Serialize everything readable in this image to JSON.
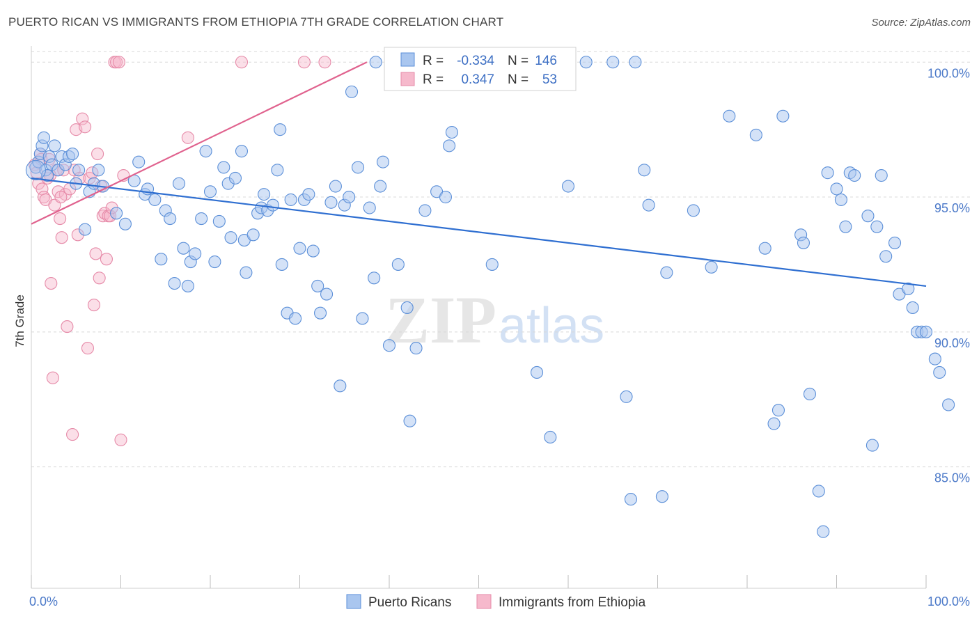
{
  "title": "PUERTO RICAN VS IMMIGRANTS FROM ETHIOPIA 7TH GRADE CORRELATION CHART",
  "source": "Source: ZipAtlas.com",
  "watermark": {
    "part1": "ZIP",
    "part2": "atlas"
  },
  "colors": {
    "blue_fill": "#a9c6ef",
    "blue_stroke": "#5b8fd8",
    "blue_line": "#2f6fd1",
    "pink_fill": "#f6b9cc",
    "pink_stroke": "#e68aa8",
    "pink_line": "#e0628e",
    "grid": "#d8d8d8",
    "tick_text": "#4a78c8"
  },
  "legend_stats": {
    "rows": [
      {
        "r_label": "R =",
        "r_value": "-0.334",
        "n_label": "N =",
        "n_value": "146"
      },
      {
        "r_label": "R =",
        "r_value": "0.347",
        "n_label": "N =",
        "n_value": "53"
      }
    ]
  },
  "chart_data": {
    "type": "scatter",
    "title": "PUERTO RICAN VS IMMIGRANTS FROM ETHIOPIA 7TH GRADE CORRELATION CHART",
    "xlabel": "",
    "ylabel": "7th Grade",
    "xlim": [
      0,
      100
    ],
    "ylim": [
      80.5,
      100.6
    ],
    "x_ticks": [
      0,
      10,
      20,
      30,
      40,
      50,
      60,
      70,
      80,
      90,
      100
    ],
    "x_tick_labels": {
      "0": "0.0%",
      "100": "100.0%"
    },
    "y_ticks": [
      85,
      90,
      95,
      100
    ],
    "y_tick_labels": [
      "85.0%",
      "90.0%",
      "95.0%",
      "100.0%"
    ],
    "grid": true,
    "legend_position": "bottom",
    "series": [
      {
        "name": "Puerto Ricans",
        "color": "#a9c6ef",
        "trend": {
          "x": [
            0,
            100
          ],
          "y": [
            95.7,
            91.7
          ]
        },
        "points": [
          [
            0.5,
            96.1
          ],
          [
            0.8,
            96.3
          ],
          [
            1.0,
            96.6
          ],
          [
            1.2,
            96.9
          ],
          [
            1.4,
            97.2
          ],
          [
            1.6,
            96.0
          ],
          [
            1.8,
            95.8
          ],
          [
            2.0,
            96.5
          ],
          [
            2.3,
            96.2
          ],
          [
            2.6,
            96.9
          ],
          [
            3.0,
            96.0
          ],
          [
            3.4,
            96.5
          ],
          [
            3.8,
            96.2
          ],
          [
            4.2,
            96.5
          ],
          [
            4.6,
            96.6
          ],
          [
            5.0,
            95.5
          ],
          [
            5.3,
            96.0
          ],
          [
            6.0,
            93.8
          ],
          [
            6.5,
            95.2
          ],
          [
            7.0,
            95.5
          ],
          [
            7.5,
            96.0
          ],
          [
            8.0,
            95.4
          ],
          [
            9.5,
            94.4
          ],
          [
            10.5,
            94.0
          ],
          [
            11.5,
            95.6
          ],
          [
            12.0,
            96.3
          ],
          [
            12.7,
            95.1
          ],
          [
            13.0,
            95.3
          ],
          [
            13.8,
            94.9
          ],
          [
            14.5,
            92.7
          ],
          [
            15.0,
            94.5
          ],
          [
            15.5,
            94.2
          ],
          [
            16.0,
            91.8
          ],
          [
            16.5,
            95.5
          ],
          [
            17.0,
            93.1
          ],
          [
            17.5,
            91.7
          ],
          [
            17.8,
            92.6
          ],
          [
            18.3,
            92.9
          ],
          [
            19.0,
            94.2
          ],
          [
            19.5,
            96.7
          ],
          [
            20.0,
            95.2
          ],
          [
            20.5,
            92.6
          ],
          [
            21.0,
            94.1
          ],
          [
            21.5,
            96.1
          ],
          [
            22.0,
            95.5
          ],
          [
            22.3,
            93.5
          ],
          [
            22.8,
            95.7
          ],
          [
            23.5,
            96.7
          ],
          [
            23.8,
            93.4
          ],
          [
            24.0,
            92.2
          ],
          [
            24.8,
            93.6
          ],
          [
            25.3,
            94.4
          ],
          [
            25.7,
            94.6
          ],
          [
            26.0,
            95.1
          ],
          [
            26.4,
            94.5
          ],
          [
            27.0,
            94.7
          ],
          [
            27.5,
            96.0
          ],
          [
            27.8,
            97.5
          ],
          [
            28.0,
            92.5
          ],
          [
            28.6,
            90.7
          ],
          [
            29.0,
            94.9
          ],
          [
            29.5,
            90.5
          ],
          [
            30.0,
            93.1
          ],
          [
            30.5,
            94.9
          ],
          [
            31.0,
            95.1
          ],
          [
            31.5,
            93.0
          ],
          [
            32.0,
            91.7
          ],
          [
            32.3,
            90.7
          ],
          [
            33.0,
            91.4
          ],
          [
            33.5,
            94.8
          ],
          [
            34.0,
            95.4
          ],
          [
            34.5,
            88.0
          ],
          [
            35.0,
            94.7
          ],
          [
            35.5,
            95.0
          ],
          [
            35.8,
            98.9
          ],
          [
            36.5,
            96.1
          ],
          [
            37.0,
            90.5
          ],
          [
            37.8,
            94.6
          ],
          [
            38.3,
            92.0
          ],
          [
            39.0,
            95.4
          ],
          [
            39.3,
            96.3
          ],
          [
            40.0,
            89.5
          ],
          [
            41.0,
            92.5
          ],
          [
            42.0,
            90.9
          ],
          [
            42.3,
            86.7
          ],
          [
            43.0,
            89.4
          ],
          [
            44.0,
            94.5
          ],
          [
            45.3,
            95.2
          ],
          [
            46.3,
            95.0
          ],
          [
            46.7,
            96.9
          ],
          [
            47.0,
            97.4
          ],
          [
            48.0,
            100.0
          ],
          [
            49.0,
            100.0
          ],
          [
            50.0,
            99.8
          ],
          [
            51.5,
            92.5
          ],
          [
            55.0,
            100.0
          ],
          [
            56.5,
            88.5
          ],
          [
            58.0,
            86.1
          ],
          [
            59.5,
            100.0
          ],
          [
            60.0,
            95.4
          ],
          [
            62.0,
            100.0
          ],
          [
            65.0,
            100.0
          ],
          [
            66.5,
            87.6
          ],
          [
            67.0,
            83.8
          ],
          [
            67.5,
            100.0
          ],
          [
            68.5,
            96.0
          ],
          [
            69.0,
            94.7
          ],
          [
            70.5,
            83.9
          ],
          [
            71.0,
            92.2
          ],
          [
            74.0,
            94.5
          ],
          [
            76.0,
            92.4
          ],
          [
            78.0,
            98.0
          ],
          [
            81.0,
            97.3
          ],
          [
            82.0,
            93.1
          ],
          [
            83.0,
            86.6
          ],
          [
            83.5,
            87.1
          ],
          [
            84.0,
            98.0
          ],
          [
            86.0,
            93.6
          ],
          [
            86.3,
            93.3
          ],
          [
            87.0,
            87.7
          ],
          [
            88.0,
            84.1
          ],
          [
            88.5,
            82.6
          ],
          [
            89.0,
            95.9
          ],
          [
            90.0,
            95.3
          ],
          [
            90.5,
            94.9
          ],
          [
            91.0,
            93.9
          ],
          [
            91.5,
            95.9
          ],
          [
            92.0,
            95.8
          ],
          [
            93.5,
            94.3
          ],
          [
            94.0,
            85.8
          ],
          [
            94.5,
            93.9
          ],
          [
            95.0,
            95.8
          ],
          [
            95.5,
            92.8
          ],
          [
            96.5,
            93.3
          ],
          [
            97.0,
            91.4
          ],
          [
            98.0,
            91.6
          ],
          [
            98.5,
            90.9
          ],
          [
            99.0,
            90.0
          ],
          [
            99.5,
            90.0
          ],
          [
            100.0,
            90.0
          ],
          [
            101.0,
            89.0
          ],
          [
            101.5,
            88.5
          ],
          [
            102.5,
            87.3
          ],
          [
            38.5,
            100.0
          ],
          [
            47.5,
            100.0
          ],
          [
            49.5,
            100.0
          ]
        ]
      },
      {
        "name": "Immigrants from Ethiopia",
        "color": "#f6b9cc",
        "trend": {
          "x": [
            0,
            37.5
          ],
          "y": [
            94.0,
            100.0
          ]
        },
        "points": [
          [
            0.4,
            96.2
          ],
          [
            0.6,
            95.9
          ],
          [
            0.8,
            95.5
          ],
          [
            1.0,
            96.6
          ],
          [
            1.2,
            95.3
          ],
          [
            1.4,
            95.0
          ],
          [
            1.6,
            94.9
          ],
          [
            1.8,
            95.7
          ],
          [
            2.0,
            96.4
          ],
          [
            2.2,
            91.8
          ],
          [
            2.4,
            88.3
          ],
          [
            2.6,
            94.7
          ],
          [
            2.8,
            96.0
          ],
          [
            3.0,
            95.2
          ],
          [
            3.2,
            94.2
          ],
          [
            3.4,
            93.5
          ],
          [
            3.6,
            96.0
          ],
          [
            3.8,
            95.1
          ],
          [
            4.0,
            90.2
          ],
          [
            4.3,
            95.3
          ],
          [
            4.6,
            86.2
          ],
          [
            4.8,
            96.0
          ],
          [
            5.0,
            97.5
          ],
          [
            5.2,
            93.6
          ],
          [
            5.4,
            95.7
          ],
          [
            5.7,
            97.9
          ],
          [
            6.0,
            97.6
          ],
          [
            6.3,
            89.4
          ],
          [
            6.5,
            95.7
          ],
          [
            6.8,
            95.9
          ],
          [
            7.0,
            91.0
          ],
          [
            7.2,
            92.9
          ],
          [
            7.4,
            96.6
          ],
          [
            7.6,
            92.0
          ],
          [
            7.8,
            95.4
          ],
          [
            8.0,
            94.3
          ],
          [
            8.2,
            94.4
          ],
          [
            8.4,
            92.7
          ],
          [
            8.6,
            94.3
          ],
          [
            8.8,
            94.3
          ],
          [
            9.0,
            94.6
          ],
          [
            9.3,
            100.0
          ],
          [
            9.5,
            100.0
          ],
          [
            9.8,
            100.0
          ],
          [
            10.0,
            86.0
          ],
          [
            10.3,
            95.8
          ],
          [
            17.5,
            97.2
          ],
          [
            23.5,
            100.0
          ],
          [
            30.5,
            100.0
          ],
          [
            32.8,
            100.0
          ],
          [
            1.1,
            96.4
          ],
          [
            2.1,
            95.8
          ],
          [
            3.3,
            95.0
          ]
        ]
      }
    ]
  },
  "legend": {
    "items": [
      {
        "label": "Puerto Ricans"
      },
      {
        "label": "Immigrants from Ethiopia"
      }
    ]
  }
}
